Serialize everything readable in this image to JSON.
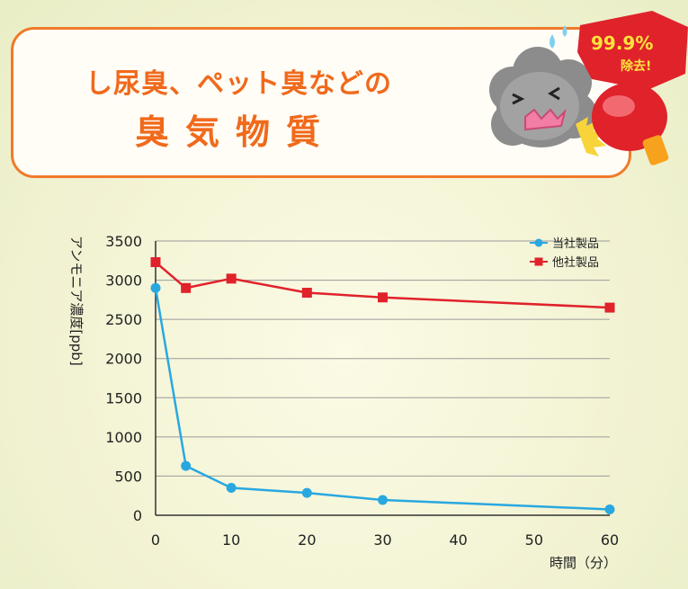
{
  "banner": {
    "title_line1": "し尿臭、ペット臭などの",
    "title_line2": "臭気物質",
    "badge_percent": "99.9%",
    "badge_removal": "除去!"
  },
  "colors": {
    "banner_border": "#f07a2a",
    "title": "#f06a1c",
    "series_own": "#29a8e0",
    "series_other": "#e0222b",
    "badge": "#e0222b"
  },
  "chart_data": {
    "type": "line",
    "title": "",
    "xlabel": "時間（分）",
    "ylabel": "アンモニア濃度[ppb]",
    "xlim": [
      0,
      60
    ],
    "ylim": [
      0,
      3500
    ],
    "xticks": [
      0,
      10,
      20,
      30,
      40,
      50,
      60
    ],
    "yticks": [
      0,
      500,
      1000,
      1500,
      2000,
      2500,
      3000,
      3500
    ],
    "grid": "horizontal",
    "legend_position": "top-right",
    "series": [
      {
        "name": "当社製品",
        "color": "#29a8e0",
        "marker": "circle",
        "points": [
          [
            0,
            2900
          ],
          [
            4,
            630
          ],
          [
            10,
            350
          ],
          [
            20,
            285
          ],
          [
            30,
            195
          ],
          [
            60,
            75
          ]
        ]
      },
      {
        "name": "他社製品",
        "color": "#e0222b",
        "marker": "square",
        "points": [
          [
            0,
            3230
          ],
          [
            4,
            2900
          ],
          [
            10,
            3020
          ],
          [
            20,
            2840
          ],
          [
            30,
            2780
          ],
          [
            60,
            2650
          ]
        ]
      }
    ]
  }
}
